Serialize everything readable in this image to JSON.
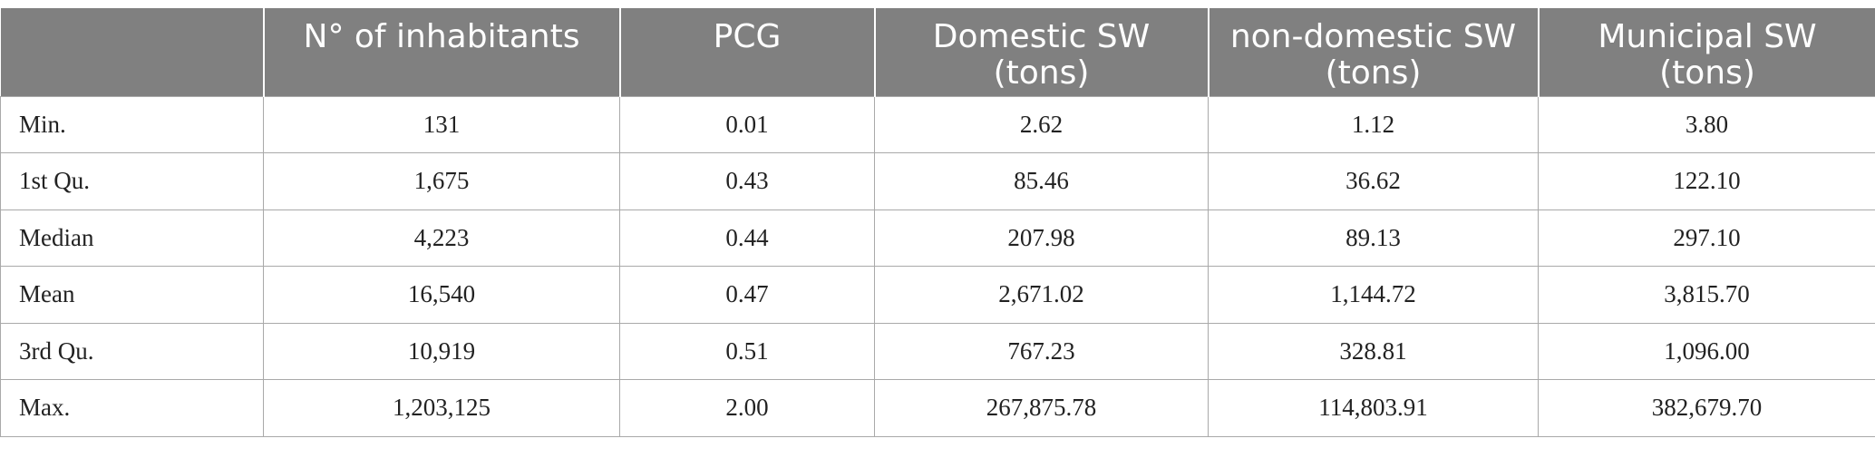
{
  "table": {
    "headers": [
      "",
      "N° of inhabitants",
      "PCG",
      "Domestic SW (tons)",
      "non-domestic SW (tons)",
      "Municipal SW (tons)"
    ],
    "rows": [
      [
        "Min.",
        "131",
        "0.01",
        "2.62",
        "1.12",
        "3.80"
      ],
      [
        "1st Qu.",
        "1,675",
        "0.43",
        "85.46",
        "36.62",
        "122.10"
      ],
      [
        "Median",
        "4,223",
        "0.44",
        "207.98",
        "89.13",
        "297.10"
      ],
      [
        "Mean",
        "16,540",
        "0.47",
        "2,671.02",
        "1,144.72",
        "3,815.70"
      ],
      [
        "3rd Qu.",
        "10,919",
        "0.51",
        "767.23",
        "328.81",
        "1,096.00"
      ],
      [
        "Max.",
        "1,203,125",
        "2.00",
        "267,875.78",
        "114,803.91",
        "382,679.70"
      ]
    ]
  }
}
